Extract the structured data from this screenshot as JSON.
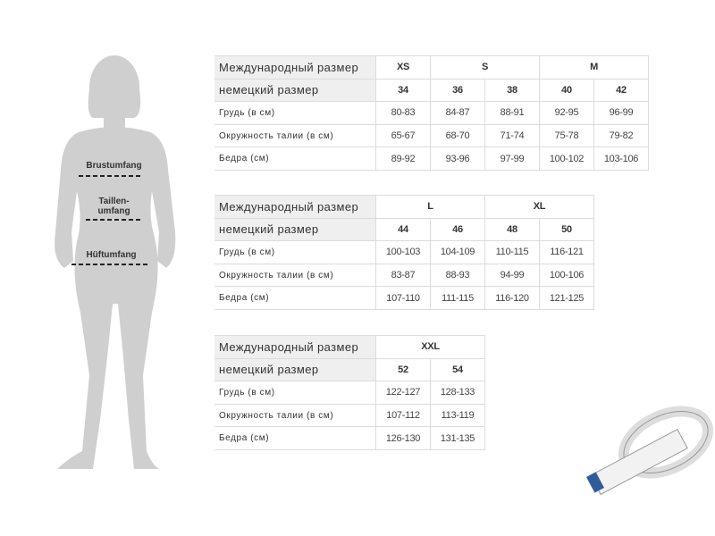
{
  "figure": {
    "bust": "Brustumfang",
    "waist": [
      "Taillen-",
      "umfang"
    ],
    "hip": "Hüftumfang"
  },
  "tables": [
    {
      "header": {
        "label": "Международный размер",
        "cells": [
          "XS",
          "S",
          null,
          "M",
          null
        ]
      },
      "rows": [
        {
          "label": "немецкий размер",
          "values": [
            "34",
            "36",
            "38",
            "40",
            "42"
          ]
        },
        {
          "label": "Грудь (в см)",
          "values": [
            "80-83",
            "84-87",
            "88-91",
            "92-95",
            "96-99"
          ]
        },
        {
          "label": "Окружность талии (в см)",
          "values": [
            "65-67",
            "68-70",
            "71-74",
            "75-78",
            "79-82"
          ]
        },
        {
          "label": "Бедра (см)",
          "values": [
            "89-92",
            "93-96",
            "97-99",
            "100-102",
            "103-106"
          ]
        }
      ]
    },
    {
      "header": {
        "label": "Международный размер",
        "cells": [
          "L",
          null,
          "XL",
          null
        ]
      },
      "rows": [
        {
          "label": "немецкий размер",
          "values": [
            "44",
            "46",
            "48",
            "50"
          ]
        },
        {
          "label": "Грудь (в см)",
          "values": [
            "100-103",
            "104-109",
            "110-115",
            "116-121"
          ]
        },
        {
          "label": "Окружность талии (в см)",
          "values": [
            "83-87",
            "88-93",
            "94-99",
            "100-106"
          ]
        },
        {
          "label": "Бедра (см)",
          "values": [
            "107-110",
            "111-115",
            "116-120",
            "121-125"
          ]
        }
      ]
    },
    {
      "header": {
        "label": "Международный размер",
        "cells": [
          "XXL",
          null
        ]
      },
      "rows": [
        {
          "label": "немецкий размер",
          "values": [
            "52",
            "54"
          ]
        },
        {
          "label": "Грудь (в см)",
          "values": [
            "122-127",
            "128-133"
          ]
        },
        {
          "label": "Окружность талии (в см)",
          "values": [
            "107-112",
            "113-119"
          ]
        },
        {
          "label": "Бедра (см)",
          "values": [
            "126-130",
            "131-135"
          ]
        }
      ]
    }
  ]
}
